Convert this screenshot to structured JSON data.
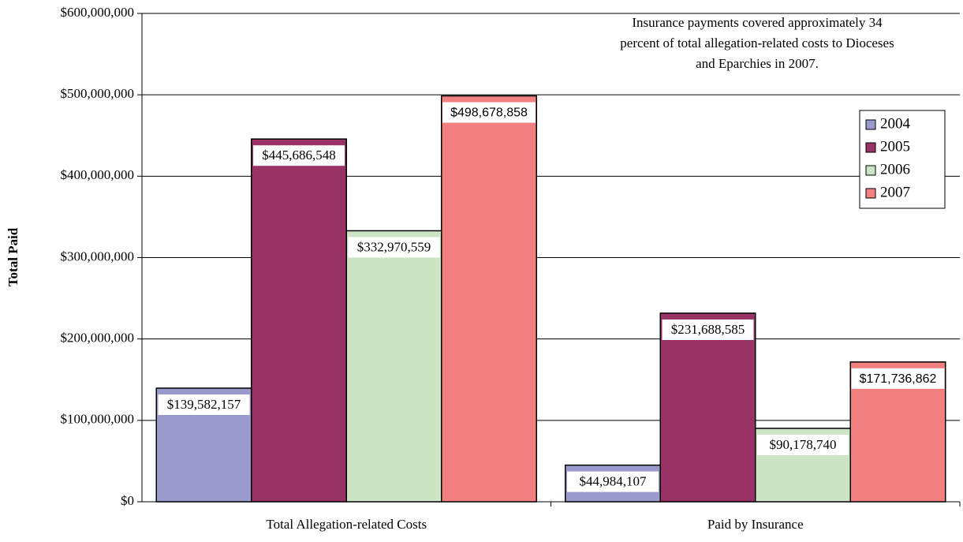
{
  "chart_data": {
    "type": "bar",
    "annotation": [
      "Insurance payments covered approximately 34",
      "percent of total allegation-related costs to Dioceses",
      "and Eparchies in 2007."
    ],
    "y_label": "Total Paid",
    "categories": [
      "Total Allegation-related Costs",
      "Paid by Insurance"
    ],
    "series": [
      {
        "name": "2004",
        "color": "#9999cc",
        "values": [
          139582157,
          44984107
        ],
        "value_labels": [
          "$139,582,157",
          "$44,984,107"
        ]
      },
      {
        "name": "2005",
        "color": "#993366",
        "values": [
          445686548,
          231688585
        ],
        "value_labels": [
          "$445,686,548",
          "$231,688,585"
        ]
      },
      {
        "name": "2006",
        "color": "#cce6c5",
        "values": [
          332970559,
          90178740
        ],
        "value_labels": [
          "$332,970,559",
          "$90,178,740"
        ]
      },
      {
        "name": "2007",
        "color": "#f28080",
        "values": [
          498678858,
          171736862
        ],
        "value_labels": [
          "$498,678,858",
          "$171,736,862"
        ]
      }
    ],
    "ylim": [
      0,
      600000000
    ],
    "yticks": [
      {
        "value": 0,
        "label": "$0"
      },
      {
        "value": 100000000,
        "label": "$100,000,000"
      },
      {
        "value": 200000000,
        "label": "$200,000,000"
      },
      {
        "value": 300000000,
        "label": "$300,000,000"
      },
      {
        "value": 400000000,
        "label": "$400,000,000"
      },
      {
        "value": 500000000,
        "label": "$500,000,000"
      },
      {
        "value": 600000000,
        "label": "$600,000,000"
      }
    ],
    "grid": true,
    "legend": "right"
  }
}
